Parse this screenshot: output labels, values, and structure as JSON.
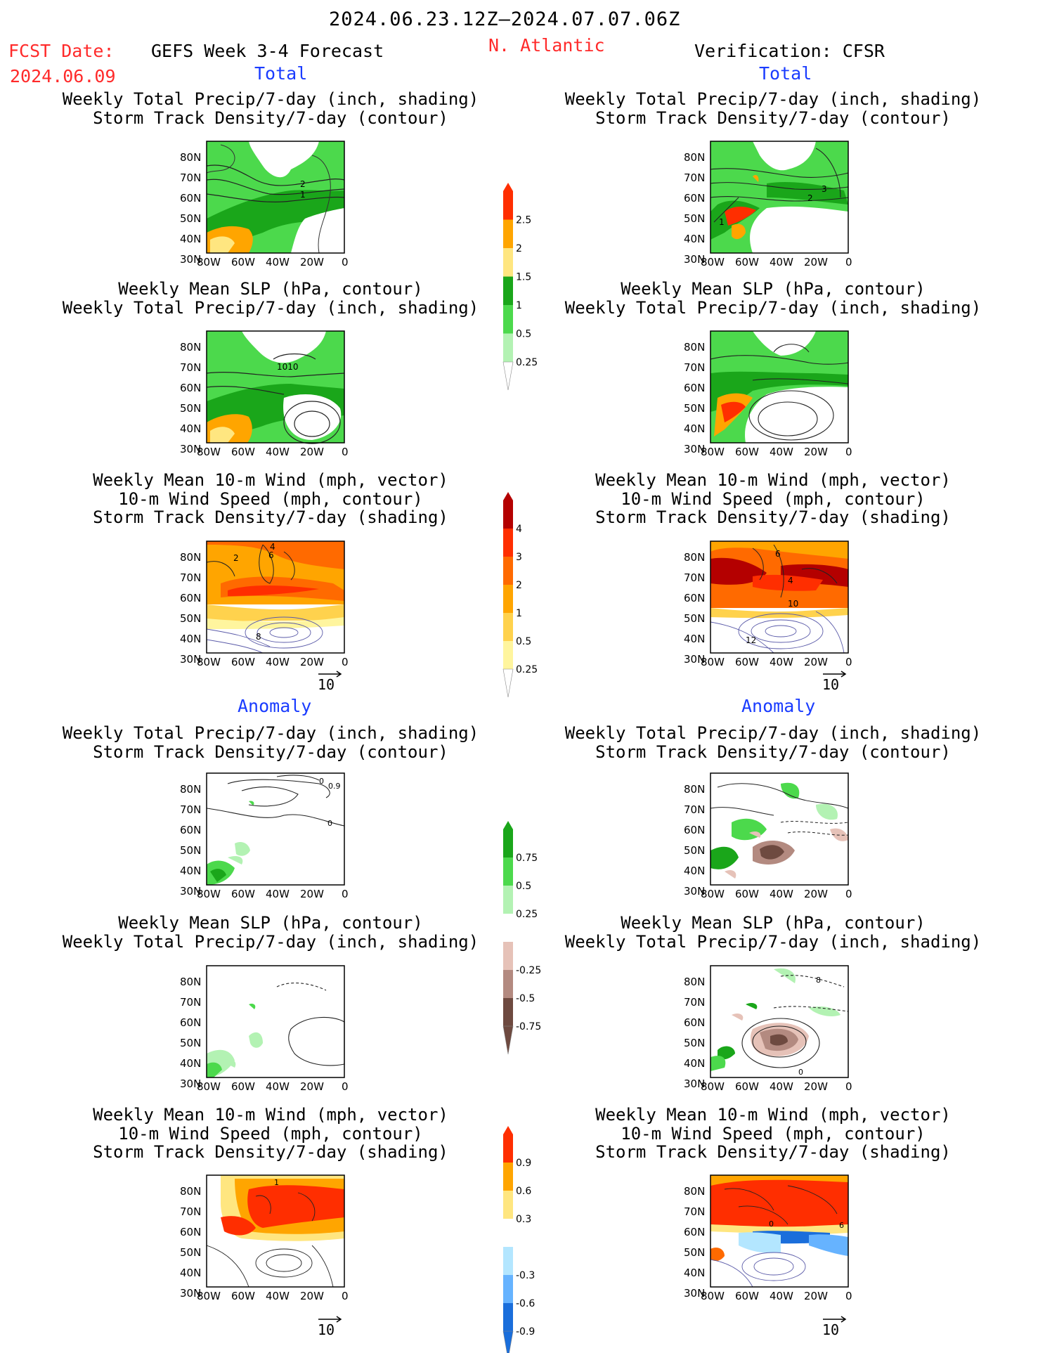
{
  "header": {
    "date_range": "2024.06.23.12Z–2024.07.07.06Z",
    "fcst_label": "FCST Date:",
    "fcst_date": "2024.06.09",
    "model_title": "GEFS Week 3-4 Forecast",
    "region": "N. Atlantic",
    "verification": "Verification: CFSR",
    "total_label_left": "Total",
    "total_label_right": "Total",
    "anomaly_label_left": "Anomaly",
    "anomaly_label_right": "Anomaly"
  },
  "panel_titles": {
    "precip_storm": [
      "Weekly Total Precip/7-day (inch, shading)",
      "Storm Track Density/7-day (contour)"
    ],
    "slp_precip": [
      "Weekly Mean SLP (hPa, contour)",
      "Weekly Total Precip/7-day (inch, shading)"
    ],
    "wind_storm": [
      "Weekly Mean 10-m Wind (mph, vector)",
      "10-m Wind Speed (mph, contour)",
      "Storm Track Density/7-day (shading)"
    ]
  },
  "axes": {
    "lat_labels": [
      "80N",
      "70N",
      "60N",
      "50N",
      "40N",
      "30N"
    ],
    "lon_labels": [
      "80W",
      "60W",
      "40W",
      "20W",
      "0"
    ]
  },
  "contour_labels": {
    "total_precip_storm_left": [
      "2",
      "1"
    ],
    "total_precip_storm_right": [
      "3",
      "2",
      "1"
    ],
    "total_slp_left": [
      "1010"
    ],
    "total_wind_left": [
      "2",
      "4",
      "6",
      "8"
    ],
    "total_wind_right": [
      "6",
      "4",
      "10",
      "12"
    ],
    "anom_precip_storm_left": [
      "0",
      "0.9",
      "0"
    ],
    "anom_slp_right": [
      "8",
      "0"
    ],
    "anom_wind_left": [
      "1"
    ],
    "anom_wind_right": [
      "0",
      "6"
    ]
  },
  "vector_reference": "10",
  "colorbars": {
    "total_precip": {
      "labels": [
        "2.5",
        "2",
        "1.5",
        "1",
        "0.5",
        "0.25"
      ],
      "colors": [
        "#ff2e00",
        "#ffa500",
        "#ffe680",
        "#1aa61a",
        "#4cd94c",
        "#b3f2b3"
      ]
    },
    "total_storm": {
      "labels": [
        "4",
        "3",
        "2",
        "1",
        "0.5",
        "0.25"
      ],
      "colors": [
        "#b40000",
        "#ff2e00",
        "#ff6a00",
        "#ffa500",
        "#ffd24d",
        "#fff59e"
      ]
    },
    "anom_precip": {
      "labels": [
        "0.75",
        "0.5",
        "0.25",
        "-0.25",
        "-0.5",
        "-0.75"
      ],
      "colors": [
        "#1aa61a",
        "#4cd94c",
        "#b3f2b3",
        "#ffffff",
        "#e6c2b8",
        "#b38a80",
        "#6e4a40"
      ]
    },
    "anom_storm": {
      "labels": [
        "0.9",
        "0.6",
        "0.3",
        "-0.3",
        "-0.6",
        "-0.9"
      ],
      "colors": [
        "#ff2e00",
        "#ffa500",
        "#ffe680",
        "#ffffff",
        "#b3e6ff",
        "#66b3ff",
        "#1a6edb"
      ]
    }
  }
}
